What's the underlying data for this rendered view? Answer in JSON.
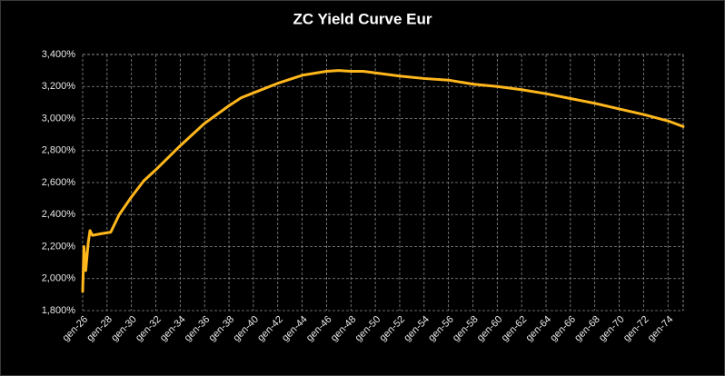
{
  "chart_data": {
    "type": "line",
    "title": "ZC Yield Curve Eur",
    "x": [
      2026.0,
      2026.1,
      2026.25,
      2026.45,
      2026.6,
      2026.8,
      2027.5,
      2028.3,
      2029,
      2030,
      2031,
      2032,
      2034,
      2036,
      2038,
      2039,
      2040,
      2042,
      2044,
      2046,
      2047,
      2048,
      2049,
      2050,
      2052,
      2054,
      2056,
      2058,
      2060,
      2062,
      2064,
      2066,
      2068,
      2070,
      2072,
      2074,
      2075.25
    ],
    "values": [
      1.92,
      2.2,
      2.05,
      2.22,
      2.3,
      2.27,
      2.28,
      2.29,
      2.4,
      2.51,
      2.61,
      2.68,
      2.83,
      2.97,
      3.08,
      3.13,
      3.16,
      3.22,
      3.27,
      3.295,
      3.3,
      3.295,
      3.295,
      3.285,
      3.265,
      3.25,
      3.24,
      3.215,
      3.2,
      3.18,
      3.155,
      3.125,
      3.095,
      3.06,
      3.025,
      2.985,
      2.95
    ],
    "color": "#ffb71c",
    "xlim": [
      2026,
      2075.25
    ],
    "xticks": [
      {
        "value": 2026,
        "label": "gen-26"
      },
      {
        "value": 2028,
        "label": "gen-28"
      },
      {
        "value": 2030,
        "label": "gen-30"
      },
      {
        "value": 2032,
        "label": "gen-32"
      },
      {
        "value": 2034,
        "label": "gen-34"
      },
      {
        "value": 2036,
        "label": "gen-36"
      },
      {
        "value": 2038,
        "label": "gen-38"
      },
      {
        "value": 2040,
        "label": "gen-40"
      },
      {
        "value": 2042,
        "label": "gen-42"
      },
      {
        "value": 2044,
        "label": "gen-44"
      },
      {
        "value": 2046,
        "label": "gen-46"
      },
      {
        "value": 2048,
        "label": "gen-48"
      },
      {
        "value": 2050,
        "label": "gen-50"
      },
      {
        "value": 2052,
        "label": "gen-52"
      },
      {
        "value": 2054,
        "label": "gen-54"
      },
      {
        "value": 2056,
        "label": "gen-56"
      },
      {
        "value": 2058,
        "label": "gen-58"
      },
      {
        "value": 2060,
        "label": "gen-60"
      },
      {
        "value": 2062,
        "label": "gen-62"
      },
      {
        "value": 2064,
        "label": "gen-64"
      },
      {
        "value": 2066,
        "label": "gen-66"
      },
      {
        "value": 2068,
        "label": "gen-68"
      },
      {
        "value": 2070,
        "label": "gen-70"
      },
      {
        "value": 2072,
        "label": "gen-72"
      },
      {
        "value": 2074,
        "label": "gen-74"
      }
    ],
    "ylim": [
      1.8,
      3.4
    ],
    "yticks": [
      {
        "value": 1.8,
        "label": "1,800%"
      },
      {
        "value": 2.0,
        "label": "2,000%"
      },
      {
        "value": 2.2,
        "label": "2,200%"
      },
      {
        "value": 2.4,
        "label": "2,400%"
      },
      {
        "value": 2.6,
        "label": "2,600%"
      },
      {
        "value": 2.8,
        "label": "2,800%"
      },
      {
        "value": 3.0,
        "label": "3,000%"
      },
      {
        "value": 3.2,
        "label": "3,200%"
      },
      {
        "value": 3.4,
        "label": "3,400%"
      }
    ],
    "grid": true
  }
}
